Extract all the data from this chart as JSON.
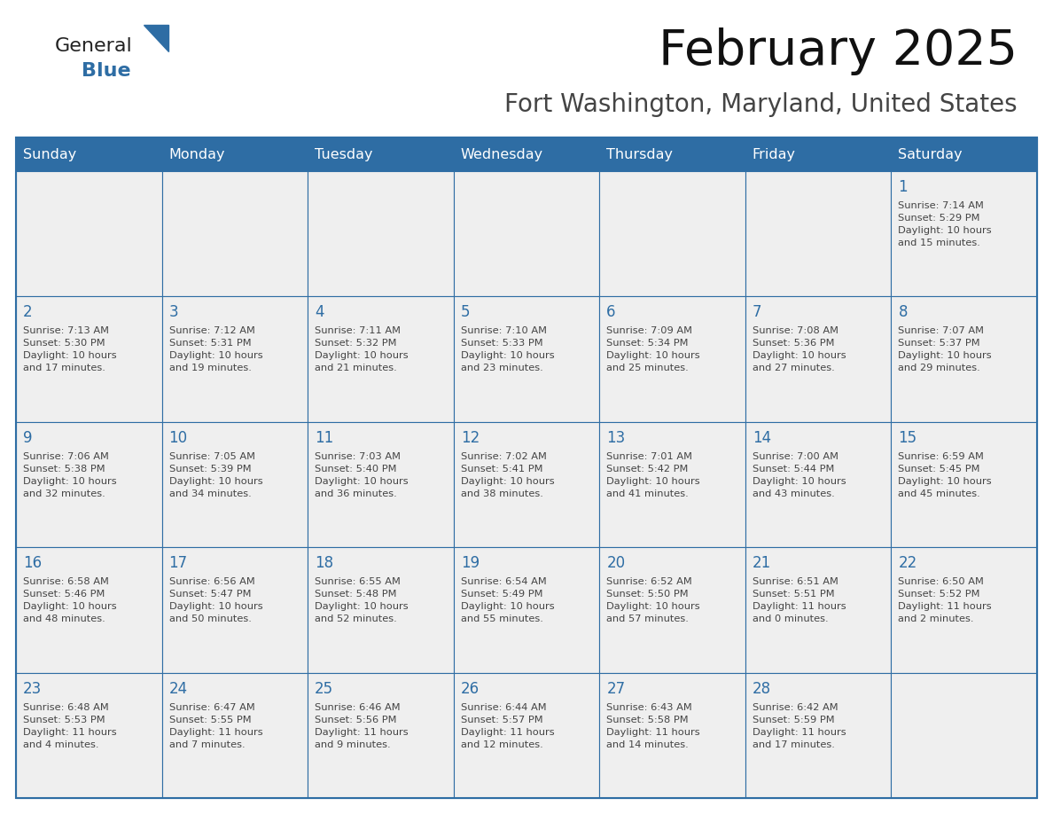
{
  "title": "February 2025",
  "subtitle": "Fort Washington, Maryland, United States",
  "days_of_week": [
    "Sunday",
    "Monday",
    "Tuesday",
    "Wednesday",
    "Thursday",
    "Friday",
    "Saturday"
  ],
  "header_bg": "#2E6DA4",
  "header_text_color": "#FFFFFF",
  "cell_bg": "#EFEFEF",
  "cell_border_color": "#2E6DA4",
  "day_number_color": "#2E6DA4",
  "cell_text_color": "#444444",
  "title_color": "#111111",
  "subtitle_color": "#444444",
  "weeks": [
    {
      "days": [
        {
          "date": null,
          "info": null
        },
        {
          "date": null,
          "info": null
        },
        {
          "date": null,
          "info": null
        },
        {
          "date": null,
          "info": null
        },
        {
          "date": null,
          "info": null
        },
        {
          "date": null,
          "info": null
        },
        {
          "date": 1,
          "info": "Sunrise: 7:14 AM\nSunset: 5:29 PM\nDaylight: 10 hours\nand 15 minutes."
        }
      ]
    },
    {
      "days": [
        {
          "date": 2,
          "info": "Sunrise: 7:13 AM\nSunset: 5:30 PM\nDaylight: 10 hours\nand 17 minutes."
        },
        {
          "date": 3,
          "info": "Sunrise: 7:12 AM\nSunset: 5:31 PM\nDaylight: 10 hours\nand 19 minutes."
        },
        {
          "date": 4,
          "info": "Sunrise: 7:11 AM\nSunset: 5:32 PM\nDaylight: 10 hours\nand 21 minutes."
        },
        {
          "date": 5,
          "info": "Sunrise: 7:10 AM\nSunset: 5:33 PM\nDaylight: 10 hours\nand 23 minutes."
        },
        {
          "date": 6,
          "info": "Sunrise: 7:09 AM\nSunset: 5:34 PM\nDaylight: 10 hours\nand 25 minutes."
        },
        {
          "date": 7,
          "info": "Sunrise: 7:08 AM\nSunset: 5:36 PM\nDaylight: 10 hours\nand 27 minutes."
        },
        {
          "date": 8,
          "info": "Sunrise: 7:07 AM\nSunset: 5:37 PM\nDaylight: 10 hours\nand 29 minutes."
        }
      ]
    },
    {
      "days": [
        {
          "date": 9,
          "info": "Sunrise: 7:06 AM\nSunset: 5:38 PM\nDaylight: 10 hours\nand 32 minutes."
        },
        {
          "date": 10,
          "info": "Sunrise: 7:05 AM\nSunset: 5:39 PM\nDaylight: 10 hours\nand 34 minutes."
        },
        {
          "date": 11,
          "info": "Sunrise: 7:03 AM\nSunset: 5:40 PM\nDaylight: 10 hours\nand 36 minutes."
        },
        {
          "date": 12,
          "info": "Sunrise: 7:02 AM\nSunset: 5:41 PM\nDaylight: 10 hours\nand 38 minutes."
        },
        {
          "date": 13,
          "info": "Sunrise: 7:01 AM\nSunset: 5:42 PM\nDaylight: 10 hours\nand 41 minutes."
        },
        {
          "date": 14,
          "info": "Sunrise: 7:00 AM\nSunset: 5:44 PM\nDaylight: 10 hours\nand 43 minutes."
        },
        {
          "date": 15,
          "info": "Sunrise: 6:59 AM\nSunset: 5:45 PM\nDaylight: 10 hours\nand 45 minutes."
        }
      ]
    },
    {
      "days": [
        {
          "date": 16,
          "info": "Sunrise: 6:58 AM\nSunset: 5:46 PM\nDaylight: 10 hours\nand 48 minutes."
        },
        {
          "date": 17,
          "info": "Sunrise: 6:56 AM\nSunset: 5:47 PM\nDaylight: 10 hours\nand 50 minutes."
        },
        {
          "date": 18,
          "info": "Sunrise: 6:55 AM\nSunset: 5:48 PM\nDaylight: 10 hours\nand 52 minutes."
        },
        {
          "date": 19,
          "info": "Sunrise: 6:54 AM\nSunset: 5:49 PM\nDaylight: 10 hours\nand 55 minutes."
        },
        {
          "date": 20,
          "info": "Sunrise: 6:52 AM\nSunset: 5:50 PM\nDaylight: 10 hours\nand 57 minutes."
        },
        {
          "date": 21,
          "info": "Sunrise: 6:51 AM\nSunset: 5:51 PM\nDaylight: 11 hours\nand 0 minutes."
        },
        {
          "date": 22,
          "info": "Sunrise: 6:50 AM\nSunset: 5:52 PM\nDaylight: 11 hours\nand 2 minutes."
        }
      ]
    },
    {
      "days": [
        {
          "date": 23,
          "info": "Sunrise: 6:48 AM\nSunset: 5:53 PM\nDaylight: 11 hours\nand 4 minutes."
        },
        {
          "date": 24,
          "info": "Sunrise: 6:47 AM\nSunset: 5:55 PM\nDaylight: 11 hours\nand 7 minutes."
        },
        {
          "date": 25,
          "info": "Sunrise: 6:46 AM\nSunset: 5:56 PM\nDaylight: 11 hours\nand 9 minutes."
        },
        {
          "date": 26,
          "info": "Sunrise: 6:44 AM\nSunset: 5:57 PM\nDaylight: 11 hours\nand 12 minutes."
        },
        {
          "date": 27,
          "info": "Sunrise: 6:43 AM\nSunset: 5:58 PM\nDaylight: 11 hours\nand 14 minutes."
        },
        {
          "date": 28,
          "info": "Sunrise: 6:42 AM\nSunset: 5:59 PM\nDaylight: 11 hours\nand 17 minutes."
        },
        {
          "date": null,
          "info": null
        }
      ]
    }
  ]
}
